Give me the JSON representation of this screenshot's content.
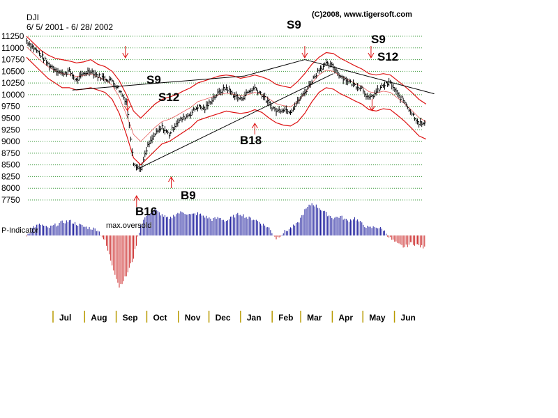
{
  "chart_data": {
    "type": "candlestick-with-indicator",
    "symbol": "DJI",
    "date_range": "6/ 5/ 2001 - 6/ 28/ 2002",
    "copyright": "(C)2008, www.tigersoft.com",
    "y_ticks": [
      11250,
      11000,
      10750,
      10500,
      10250,
      10000,
      9750,
      9500,
      9250,
      9000,
      8750,
      8500,
      8250,
      8000,
      7750
    ],
    "ylim": [
      7750,
      11250
    ],
    "months": [
      "Jul",
      "Aug",
      "Sep",
      "Oct",
      "Nov",
      "Dec",
      "Jan",
      "Feb",
      "Mar",
      "Apr",
      "May",
      "Jun"
    ],
    "indicator_label": "P-Indicator",
    "indicator_annotation": "max.oversold",
    "signals": [
      {
        "label": "S9",
        "type": "sell",
        "date": "2001-09-10"
      },
      {
        "label": "S12",
        "type": "sell",
        "date": "2001-09-12"
      },
      {
        "label": "B16",
        "type": "buy",
        "date": "2001-09-21"
      },
      {
        "label": "B9",
        "type": "buy",
        "date": "2001-10-25"
      },
      {
        "label": "B18",
        "type": "buy",
        "date": "2002-01-15"
      },
      {
        "label": "S9",
        "type": "sell",
        "date": "2002-03-05"
      },
      {
        "label": "S9",
        "type": "sell",
        "date": "2002-05-09"
      },
      {
        "label": "S12",
        "type": "sell",
        "date": "2002-05-10"
      }
    ],
    "close_series": {
      "start": "2001-06-05",
      "step": "weekly",
      "values": [
        11150,
        11000,
        10850,
        10650,
        10550,
        10450,
        10500,
        10300,
        10450,
        10520,
        10400,
        10350,
        10300,
        10100,
        9850,
        8550,
        8400,
        8900,
        9150,
        9300,
        9150,
        9400,
        9500,
        9600,
        9750,
        9700,
        9900,
        10050,
        10150,
        10000,
        9900,
        10050,
        10150,
        10000,
        9800,
        9650,
        9700,
        9650,
        9850,
        10050,
        10300,
        10550,
        10650,
        10600,
        10400,
        10300,
        10200,
        10150,
        9900,
        10050,
        10200,
        10250,
        10000,
        9850,
        9600,
        9400,
        9350
      ]
    },
    "indicator_series": {
      "start": "2001-06-05",
      "step": "weekly",
      "values": [
        0,
        12,
        15,
        10,
        14,
        18,
        20,
        16,
        12,
        10,
        8,
        -8,
        -40,
        -70,
        -55,
        -30,
        15,
        30,
        35,
        28,
        22,
        30,
        32,
        28,
        30,
        26,
        22,
        24,
        20,
        26,
        30,
        24,
        22,
        16,
        10,
        -4,
        4,
        10,
        16,
        34,
        44,
        38,
        30,
        24,
        26,
        20,
        24,
        16,
        10,
        12,
        8,
        -4,
        -12,
        -16,
        -10,
        -14,
        -18
      ]
    },
    "upper_band": [
      11250,
      11100,
      10950,
      10850,
      10780,
      10750,
      10720,
      10680,
      10700,
      10750,
      10650,
      10600,
      10500,
      10300,
      10000,
      9650,
      9500,
      9650,
      9800,
      9900,
      9950,
      10000,
      10080,
      10150,
      10250,
      10300,
      10350,
      10400,
      10420,
      10400,
      10350,
      10380,
      10420,
      10380,
      10320,
      10220,
      10180,
      10150,
      10280,
      10450,
      10650,
      10800,
      10900,
      10880,
      10780,
      10700,
      10620,
      10550,
      10450,
      10420,
      10450,
      10420,
      10300,
      10180,
      10050,
      9900,
      9800
    ],
    "lower_band": [
      10800,
      10650,
      10500,
      10350,
      10250,
      10150,
      10150,
      10100,
      10120,
      10150,
      10100,
      10050,
      9900,
      9600,
      9150,
      8650,
      8500,
      8650,
      8800,
      8950,
      9000,
      9100,
      9200,
      9300,
      9450,
      9500,
      9550,
      9600,
      9650,
      9620,
      9600,
      9620,
      9680,
      9620,
      9500,
      9400,
      9350,
      9330,
      9420,
      9600,
      9850,
      10050,
      10150,
      10120,
      10020,
      9950,
      9870,
      9800,
      9680,
      9650,
      9700,
      9680,
      9560,
      9430,
      9280,
      9120,
      9050
    ],
    "trendlines": [
      {
        "from": [
          "2001-07-20",
          10100
        ],
        "to": [
          "2002-01-05",
          10400
        ]
      },
      {
        "from": [
          "2002-01-05",
          10400
        ],
        "to": [
          "2002-03-05",
          10750
        ]
      },
      {
        "from": [
          "2001-09-21",
          8400
        ],
        "to": [
          "2002-04-02",
          10450
        ]
      },
      {
        "from": [
          "2002-03-05",
          10750
        ],
        "to": [
          "2002-07-10",
          10020
        ]
      }
    ]
  }
}
